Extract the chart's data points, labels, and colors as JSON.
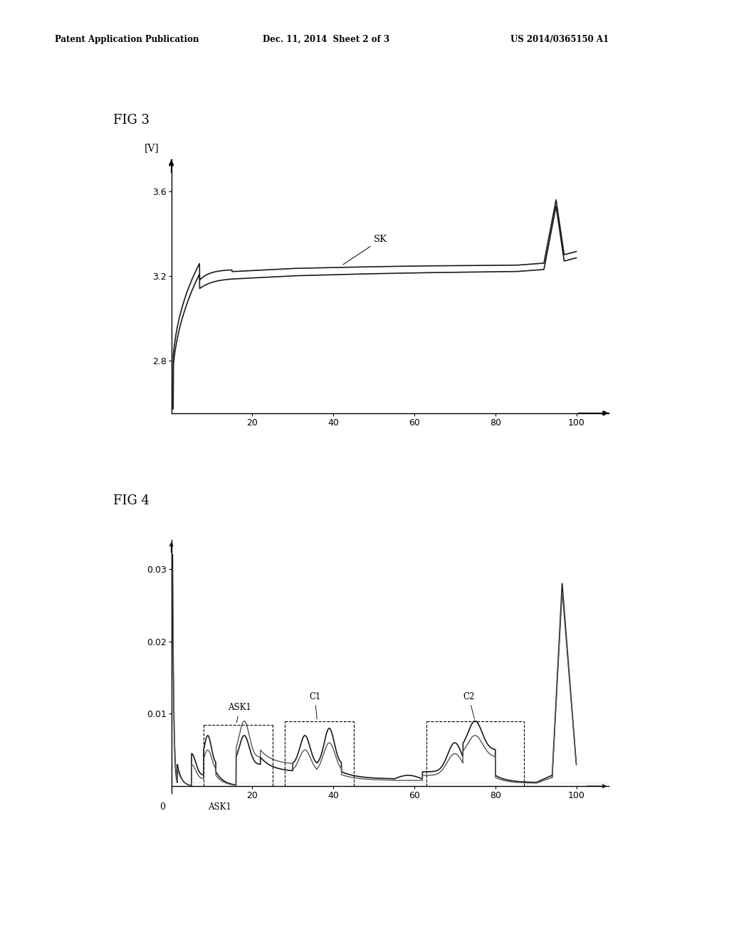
{
  "header_left": "Patent Application Publication",
  "header_mid": "Dec. 11, 2014  Sheet 2 of 3",
  "header_right": "US 2014/0365150 A1",
  "fig3_title": "FIG 3",
  "fig4_title": "FIG 4",
  "fig3_ylabel": "[V]",
  "fig3_yticks": [
    2.8,
    3.2,
    3.6
  ],
  "fig3_xticks": [
    20,
    40,
    60,
    80,
    100
  ],
  "fig3_xlim": [
    0,
    108
  ],
  "fig3_ylim": [
    2.55,
    3.75
  ],
  "fig4_yticks": [
    0.01,
    0.02,
    0.03
  ],
  "fig4_xticks": [
    20,
    40,
    60,
    80,
    100
  ],
  "fig4_xlim": [
    0,
    108
  ],
  "fig4_ylim": [
    -0.001,
    0.034
  ],
  "background_color": "#ffffff",
  "line_color": "#1a1a1a",
  "annotation_color": "#1a1a1a"
}
